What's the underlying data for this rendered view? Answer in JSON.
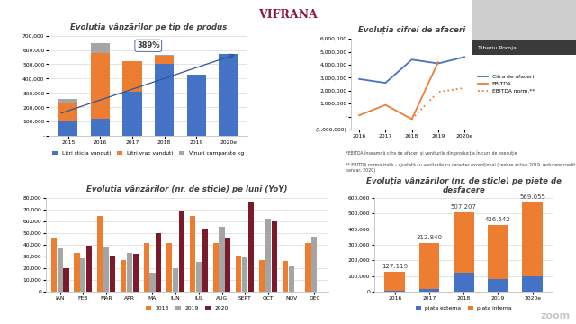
{
  "logo": "VIFRANA",
  "speaker": "Tiberiu Poroja...",
  "watermark": "zoom",
  "chart_data": [
    {
      "type": "bar",
      "stacked": true,
      "grid": true,
      "legend": "bottom",
      "title": "Evoluția vânzărilor pe tip de produs",
      "annotations": [
        "389%"
      ],
      "categories": [
        "2015",
        "2016",
        "2017",
        "2018",
        "2019",
        "2020e"
      ],
      "series": [
        {
          "name": "Litri sticla vanduti",
          "color": "#4472c4",
          "values": [
            100000,
            120000,
            310000,
            500000,
            430000,
            570000
          ]
        },
        {
          "name": "Litri vrac vanduti",
          "color": "#ed7d31",
          "values": [
            130000,
            460000,
            210000,
            60000,
            null,
            null
          ]
        },
        {
          "name": "Vinuri cumparate kg",
          "color": "#a5a5a5",
          "values": [
            30000,
            70000,
            null,
            5000,
            null,
            null
          ]
        }
      ],
      "ylim": [
        0,
        700000
      ],
      "yticks": [
        {
          "value": 0,
          "label": "-"
        },
        {
          "value": 100000,
          "label": "100,000"
        },
        {
          "value": 200000,
          "label": "200,000"
        },
        {
          "value": 300000,
          "label": "300,000"
        },
        {
          "value": 400000,
          "label": "400,000"
        },
        {
          "value": 500000,
          "label": "500,000"
        },
        {
          "value": 600000,
          "label": "600,000"
        },
        {
          "value": 700000,
          "label": "700,000"
        }
      ]
    },
    {
      "type": "line",
      "legend": "right",
      "title": "Evoluția cifrei de afaceri",
      "annotations": [
        "*EBITDA înseamnă cifra de afaceri și veniturile din producția în curs de execuție",
        "** EBITDA normalizată – ajustată cu veniturile cu caracter excepțional (cedare active 2019, reducere credit bancar, 2020)"
      ],
      "categories": [
        "2016",
        "2017",
        "2018",
        "2019",
        "2020e"
      ],
      "series": [
        {
          "name": "Cifra de afaceri",
          "color": "#4472c4",
          "line_style": "solid",
          "values": [
            2900000,
            2600000,
            4400000,
            4100000,
            4600000
          ]
        },
        {
          "name": "EBITDA",
          "color": "#ed7d31",
          "line_style": "solid",
          "values": [
            100000,
            900000,
            -200000,
            4200000,
            null
          ]
        },
        {
          "name": "EBITDA norm.**",
          "color": "#ed7d31",
          "line_style": "dotted",
          "values": [
            null,
            null,
            -200000,
            1900000,
            2200000
          ]
        }
      ],
      "ylim": [
        -1000000,
        6000000
      ],
      "yticks": [
        {
          "value": -1000000,
          "label": "(1,000,000)"
        },
        {
          "value": 0,
          "label": "-"
        },
        {
          "value": 1000000,
          "label": "1,000,000"
        },
        {
          "value": 2000000,
          "label": "2,000,000"
        },
        {
          "value": 3000000,
          "label": "3,000,000"
        },
        {
          "value": 4000000,
          "label": "4,000,000"
        },
        {
          "value": 5000000,
          "label": "5,000,000"
        },
        {
          "value": 6000000,
          "label": "6,000,000"
        }
      ]
    },
    {
      "type": "bar",
      "grid": true,
      "legend": "bottom",
      "title": "Evoluția vânzărilor (nr. de sticle) pe luni (YoY)",
      "categories": [
        "IAN",
        "FEB",
        "MAR",
        "APR",
        "MAI",
        "IUN",
        "IUL",
        "AUG",
        "SEPT",
        "OCT",
        "NOV",
        "DEC"
      ],
      "series": [
        {
          "name": "2018",
          "color": "#ed7d31",
          "values": [
            46000,
            33000,
            64000,
            27000,
            41000,
            41000,
            64000,
            41000,
            31000,
            27000,
            26000,
            41000
          ]
        },
        {
          "name": "2019",
          "color": "#a5a5a5",
          "values": [
            37000,
            28000,
            38000,
            33000,
            16000,
            20000,
            25000,
            55000,
            30000,
            62000,
            22000,
            47000
          ]
        },
        {
          "name": "2020",
          "color": "#7b1a2a",
          "values": [
            20000,
            39000,
            31000,
            32000,
            50000,
            69000,
            54000,
            46000,
            76000,
            60000,
            null,
            null
          ]
        }
      ],
      "ylim": [
        0,
        80000
      ],
      "yticks": [
        0,
        {
          "value": 10000,
          "label": "10,000"
        },
        {
          "value": 20000,
          "label": "20,000"
        },
        {
          "value": 30000,
          "label": "30,000"
        },
        {
          "value": 40000,
          "label": "40,000"
        },
        {
          "value": 50000,
          "label": "50,000"
        },
        {
          "value": 60000,
          "label": "60,000"
        },
        {
          "value": 70000,
          "label": "70,000"
        },
        {
          "value": 80000,
          "label": "80,000"
        }
      ]
    },
    {
      "type": "bar",
      "stacked": true,
      "grid": true,
      "legend": "bottom",
      "title": "Evoluția vânzărilor (nr. de sticle) pe piete de desfacere",
      "categories": [
        "2016",
        "2017",
        "2018",
        "2019",
        "2020e"
      ],
      "series": [
        {
          "name": "piata externa",
          "color": "#4472c4",
          "values": [
            5000,
            20000,
            120000,
            80000,
            100000
          ]
        },
        {
          "name": "piata interna",
          "color": "#ed7d31",
          "values": [
            122119,
            292840,
            387207,
            346542,
            469055
          ]
        }
      ],
      "totals": [
        127119,
        312840,
        507207,
        426542,
        569055
      ],
      "total_labels": [
        "127.119",
        "312.840",
        "507.207",
        "426.542",
        "569.055"
      ],
      "ylim": [
        0,
        600000
      ],
      "yticks": [
        0,
        {
          "value": 100000,
          "label": "100,000"
        },
        {
          "value": 200000,
          "label": "200,000"
        },
        {
          "value": 300000,
          "label": "300,000"
        },
        {
          "value": 400000,
          "label": "400,000"
        },
        {
          "value": 500000,
          "label": "500,000"
        },
        {
          "value": 600000,
          "label": "600,000"
        }
      ]
    }
  ]
}
